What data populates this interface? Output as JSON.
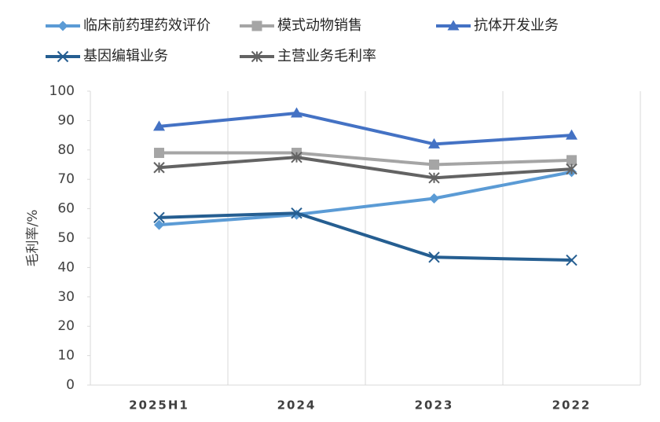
{
  "chart_data": {
    "type": "line",
    "y_label": "毛利率/%",
    "categories": [
      "2025H1",
      "2024",
      "2023",
      "2022"
    ],
    "series": [
      {
        "name": "临床前药理药效评价",
        "color": "#5b9bd5",
        "marker": "diamond",
        "values": [
          54.5,
          58,
          63.5,
          72.5
        ]
      },
      {
        "name": "模式动物销售",
        "color": "#a5a5a5",
        "marker": "square",
        "values": [
          79,
          79,
          75,
          76.5
        ]
      },
      {
        "name": "抗体开发业务",
        "color": "#4472c4",
        "marker": "triangle",
        "values": [
          88,
          92.5,
          82,
          85
        ]
      },
      {
        "name": "基因编辑业务",
        "color": "#255e91",
        "marker": "x",
        "values": [
          57,
          58.5,
          43.5,
          42.5
        ]
      },
      {
        "name": "主营业务毛利率",
        "color": "#636363",
        "marker": "star",
        "values": [
          74,
          77.5,
          70.5,
          73.5
        ]
      }
    ],
    "ylim": [
      0,
      100
    ],
    "yticks": [
      0,
      10,
      20,
      30,
      40,
      50,
      60,
      70,
      80,
      90,
      100
    ],
    "grid": "x"
  }
}
